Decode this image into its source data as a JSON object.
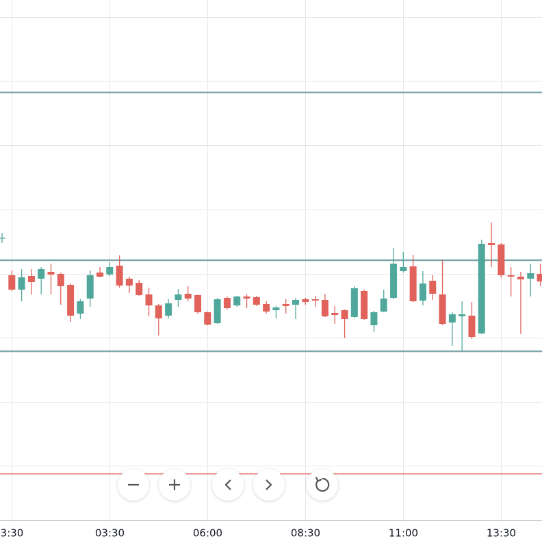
{
  "chart_data": {
    "type": "candlestick",
    "up_color": "#4fa89b",
    "down_color": "#e0625b",
    "xlim": [
      -0.21,
      55.17
    ],
    "ylim": [
      0,
      760
    ],
    "xticks": [
      {
        "value": 1,
        "label": "3:30"
      },
      {
        "value": 11,
        "label": "03:30"
      },
      {
        "value": 21,
        "label": "06:00"
      },
      {
        "value": 31,
        "label": "08:30"
      },
      {
        "value": 41,
        "label": "11:00"
      },
      {
        "value": 51,
        "label": "13:30"
      }
    ],
    "ygrid": [
      735,
      642,
      548,
      454,
      360,
      267,
      173,
      80
    ],
    "grid": true,
    "hlines": [
      {
        "value": 625,
        "color": "#7fa7a9",
        "width": 2.5
      },
      {
        "value": 380,
        "color": "#7fa7a9",
        "width": 2.5
      },
      {
        "value": 247,
        "color": "#7fa7a9",
        "width": 2.5
      },
      {
        "value": 68,
        "color": "#e0625b",
        "width": 1.2
      }
    ],
    "open": [
      413,
      358,
      337,
      357,
      353,
      363,
      360,
      344,
      302,
      324,
      362,
      359,
      372,
      353,
      347,
      330,
      314,
      299,
      322,
      331,
      329,
      304,
      288,
      325,
      314,
      327,
      326,
      316,
      307,
      316,
      315,
      323,
      323,
      322,
      303,
      307,
      297,
      335,
      285,
      305,
      325,
      364,
      371,
      321,
      350,
      330,
      289,
      298,
      299,
      273,
      405,
      403,
      358,
      356,
      353,
      360
    ],
    "high": [
      420,
      365,
      367,
      367,
      370,
      375,
      362,
      346,
      323,
      365,
      370,
      377,
      387,
      356,
      351,
      340,
      316,
      323,
      338,
      342,
      330,
      305,
      325,
      327,
      328,
      330,
      328,
      320,
      313,
      323,
      325,
      325,
      328,
      331,
      313,
      308,
      342,
      337,
      306,
      337,
      398,
      392,
      388,
      364,
      358,
      380,
      304,
      320,
      319,
      410,
      435,
      405,
      370,
      363,
      375,
      375
    ],
    "low": [
      405,
      335,
      320,
      330,
      330,
      330,
      315,
      290,
      294,
      312,
      355,
      357,
      340,
      332,
      328,
      298,
      270,
      295,
      312,
      320,
      302,
      285,
      287,
      308,
      312,
      310,
      313,
      302,
      295,
      302,
      294,
      315,
      312,
      297,
      287,
      266,
      296,
      293,
      275,
      304,
      323,
      362,
      319,
      314,
      322,
      285,
      255,
      248,
      265,
      272,
      370,
      354,
      327,
      272,
      327,
      342
    ],
    "close": [
      413,
      337,
      355,
      348,
      367,
      359,
      342,
      299,
      320,
      358,
      356,
      370,
      343,
      343,
      329,
      314,
      295,
      317,
      330,
      324,
      304,
      286,
      323,
      310,
      327,
      324,
      315,
      305,
      311,
      313,
      322,
      319,
      321,
      298,
      300,
      294,
      339,
      294,
      304,
      324,
      375,
      370,
      320,
      346,
      331,
      287,
      301,
      301,
      268,
      404,
      402,
      358,
      356,
      352,
      361,
      349
    ]
  }
}
